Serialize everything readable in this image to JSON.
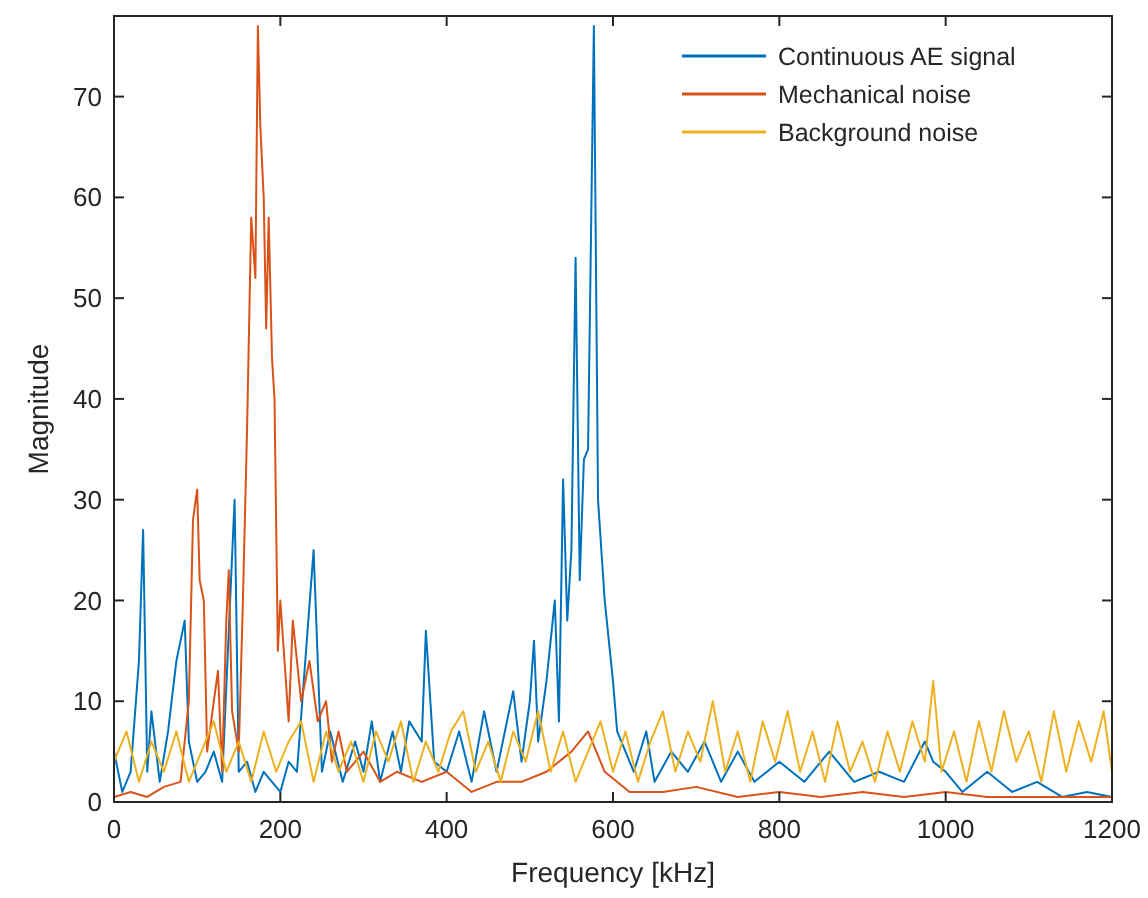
{
  "chart_data": {
    "type": "line",
    "xlabel": "Frequency [kHz]",
    "ylabel": "Magnitude",
    "xlim": [
      0,
      1200
    ],
    "ylim": [
      0,
      78
    ],
    "xticks": [
      0,
      200,
      400,
      600,
      800,
      1000,
      1200
    ],
    "yticks": [
      0,
      10,
      20,
      30,
      40,
      50,
      60,
      70
    ],
    "legend": "top right",
    "grid": false,
    "series": [
      {
        "name": "Continuous AE signal",
        "color": "#0072bd",
        "x": [
          0,
          10,
          20,
          30,
          35,
          40,
          45,
          55,
          65,
          75,
          85,
          90,
          100,
          110,
          120,
          130,
          145,
          150,
          160,
          170,
          180,
          190,
          200,
          210,
          220,
          240,
          250,
          260,
          275,
          290,
          300,
          310,
          320,
          335,
          345,
          355,
          370,
          375,
          385,
          400,
          415,
          430,
          445,
          460,
          470,
          480,
          490,
          500,
          505,
          510,
          520,
          530,
          535,
          540,
          545,
          550,
          555,
          560,
          565,
          570,
          577,
          582,
          590,
          595,
          600,
          605,
          615,
          625,
          640,
          650,
          670,
          690,
          710,
          730,
          750,
          770,
          800,
          830,
          860,
          890,
          920,
          950,
          975,
          985,
          1000,
          1020,
          1050,
          1080,
          1110,
          1140,
          1170,
          1200
        ],
        "values": [
          5,
          1,
          3,
          14,
          27,
          3,
          9,
          2,
          7,
          14,
          18,
          6,
          2,
          3,
          5,
          2,
          30,
          3,
          4,
          1,
          3,
          2,
          1,
          4,
          3,
          25,
          3,
          7,
          2,
          6,
          3,
          8,
          2,
          7,
          3,
          8,
          6,
          17,
          4,
          3,
          7,
          2,
          9,
          3,
          7,
          11,
          4,
          10,
          16,
          6,
          12,
          20,
          8,
          32,
          18,
          25,
          54,
          22,
          34,
          35,
          77,
          30,
          20,
          16,
          12,
          7,
          5,
          3,
          7,
          2,
          5,
          3,
          6,
          2,
          5,
          2,
          4,
          2,
          5,
          2,
          3,
          2,
          6,
          4,
          3,
          1,
          3,
          1,
          2,
          0.5,
          1,
          0.5
        ]
      },
      {
        "name": "Mechanical noise",
        "color": "#d95319",
        "x": [
          0,
          20,
          40,
          60,
          80,
          90,
          95,
          100,
          103,
          108,
          112,
          120,
          125,
          130,
          135,
          138,
          142,
          150,
          155,
          160,
          165,
          170,
          173,
          176,
          180,
          183,
          186,
          190,
          193,
          197,
          200,
          210,
          215,
          225,
          235,
          245,
          255,
          262,
          270,
          280,
          300,
          320,
          340,
          370,
          400,
          430,
          460,
          490,
          520,
          550,
          570,
          590,
          620,
          660,
          700,
          750,
          800,
          850,
          900,
          950,
          1000,
          1050,
          1100,
          1150,
          1200
        ],
        "values": [
          0.5,
          1,
          0.5,
          1.5,
          2,
          10,
          28,
          31,
          22,
          20,
          5,
          10,
          13,
          3,
          18,
          23,
          9,
          5,
          20,
          37,
          58,
          52,
          77,
          67,
          60,
          47,
          58,
          44,
          40,
          15,
          20,
          8,
          18,
          10,
          14,
          8,
          10,
          4,
          7,
          3,
          5,
          2,
          3,
          2,
          3,
          1,
          2,
          2,
          3,
          5,
          7,
          3,
          1,
          1,
          1.5,
          0.5,
          1,
          0.5,
          1,
          0.5,
          1,
          0.5,
          0.5,
          0.5,
          0.5
        ]
      },
      {
        "name": "Background noise",
        "color": "#edb120",
        "x": [
          0,
          15,
          30,
          45,
          60,
          75,
          90,
          105,
          120,
          135,
          150,
          165,
          180,
          195,
          210,
          225,
          240,
          255,
          270,
          285,
          300,
          315,
          330,
          345,
          360,
          375,
          390,
          405,
          420,
          435,
          450,
          465,
          480,
          495,
          510,
          525,
          540,
          555,
          570,
          585,
          600,
          615,
          630,
          645,
          660,
          675,
          690,
          705,
          720,
          735,
          750,
          765,
          780,
          795,
          810,
          825,
          840,
          855,
          870,
          885,
          900,
          915,
          930,
          945,
          960,
          975,
          985,
          995,
          1010,
          1025,
          1040,
          1055,
          1070,
          1085,
          1100,
          1115,
          1130,
          1145,
          1160,
          1175,
          1190,
          1200
        ],
        "values": [
          4,
          7,
          2,
          6,
          3,
          7,
          2,
          5,
          8,
          3,
          6,
          2,
          7,
          3,
          6,
          8,
          2,
          7,
          3,
          6,
          2,
          7,
          4,
          8,
          2,
          6,
          3,
          7,
          9,
          3,
          6,
          2,
          7,
          4,
          9,
          3,
          7,
          2,
          5,
          8,
          3,
          7,
          2,
          6,
          9,
          3,
          7,
          4,
          10,
          3,
          7,
          2,
          8,
          4,
          9,
          3,
          7,
          2,
          8,
          3,
          6,
          2,
          7,
          3,
          8,
          4,
          12,
          3,
          7,
          2,
          8,
          3,
          9,
          4,
          7,
          2,
          9,
          3,
          8,
          4,
          9,
          3
        ]
      }
    ]
  }
}
